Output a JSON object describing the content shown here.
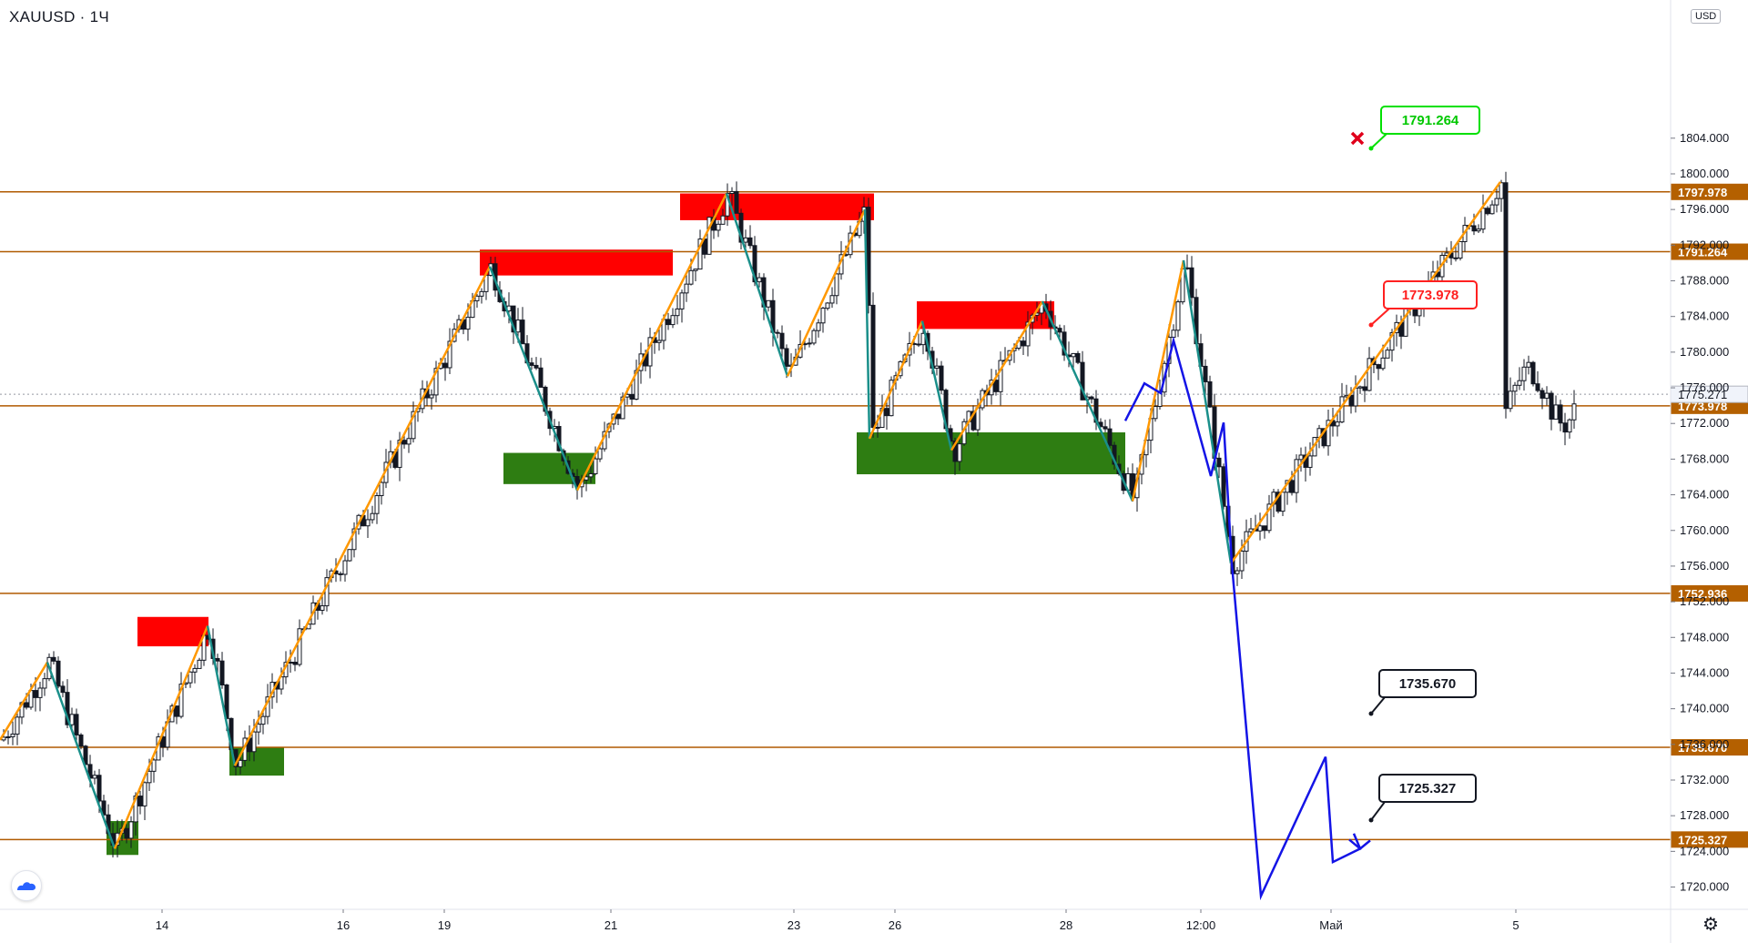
{
  "symbol": {
    "text": "XAUUSD · 1Ч"
  },
  "currency_badge": "USD",
  "colors": {
    "level_line": "#b05a00",
    "level_tag": "#b46000",
    "supply_zone": "#ff0000",
    "demand_zone": "#2e7d12",
    "swing_up": "#ff9800",
    "swing_down": "#1a8f8a",
    "projection": "#1414e6",
    "candle": "#131722",
    "grid_axis": "#e0e3eb"
  },
  "chart_data": {
    "type": "candlestick",
    "symbol": "XAUUSD",
    "timeframe": "1Ч",
    "ylim": [
      1717.5,
      1819.5
    ],
    "price_ticks": [
      1720,
      1724,
      1728,
      1732,
      1736,
      1740,
      1744,
      1748,
      1752,
      1756,
      1760,
      1764,
      1768,
      1772,
      1776,
      1780,
      1784,
      1788,
      1792,
      1796,
      1800,
      1804
    ],
    "time_ticks": [
      "14",
      "16",
      "19",
      "21",
      "23",
      "26",
      "28",
      "12:00",
      "Май",
      "5"
    ],
    "levels": [
      1797.978,
      1791.264,
      1773.978,
      1752.936,
      1735.67,
      1725.327
    ],
    "current_price": "1775.271",
    "annotations": [
      {
        "label": "1791.264",
        "style": "green"
      },
      {
        "label": "1773.978",
        "style": "red"
      },
      {
        "label": "1735.670",
        "style": "black"
      },
      {
        "label": "1725.327",
        "style": "black"
      }
    ],
    "supply_zones": [
      {
        "from": 1747.0,
        "to": 1750.3
      },
      {
        "from": 1788.6,
        "to": 1791.5
      },
      {
        "from": 1794.8,
        "to": 1797.8
      },
      {
        "from": 1782.6,
        "to": 1785.7
      }
    ],
    "demand_zones": [
      {
        "from": 1723.6,
        "to": 1727.4
      },
      {
        "from": 1732.5,
        "to": 1735.7
      },
      {
        "from": 1765.2,
        "to": 1768.7
      },
      {
        "from": 1766.3,
        "to": 1771.0
      }
    ],
    "series": [
      {
        "price_path": [
          1736.5,
          1745.2,
          1724.3,
          1749.3,
          1733.6,
          1789.6,
          1764.5,
          1797.8,
          1777.3,
          1796.0,
          1770.3,
          1783.5,
          1769.0,
          1785.7,
          1763.3,
          1790.3,
          1756.3,
          1799.1
        ]
      },
      {
        "price_path": [
          1772.3,
          1776.5,
          1775.4,
          1781.3,
          1766.1,
          1772.1,
          1756.3,
          1719.0,
          1734.6,
          1722.8,
          1724.3,
          1726.0
        ]
      }
    ],
    "x_axis_position_hint": "bottom",
    "y_axis_position_hint": "right"
  }
}
